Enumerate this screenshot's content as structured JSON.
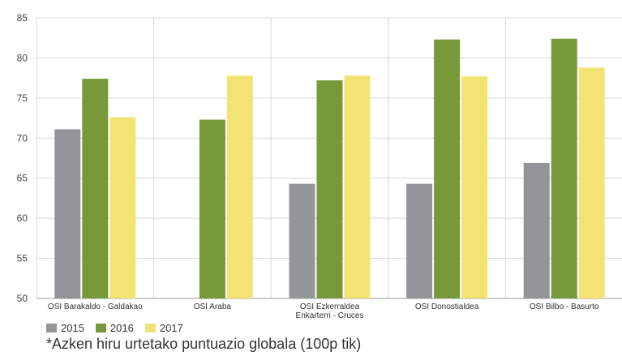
{
  "chart_data": {
    "type": "bar",
    "categories": [
      [
        "OSI Barakaldo - Galdakao"
      ],
      [
        "OSI Araba"
      ],
      [
        "OSI Ezkerraldea",
        "Enkarterri - Cruces"
      ],
      [
        "OSI Donostialdea"
      ],
      [
        "OSI Bilbo - Basurto"
      ]
    ],
    "series": [
      {
        "name": "2015",
        "color": "#939598",
        "values": [
          71.1,
          null,
          64.3,
          64.3,
          66.9
        ]
      },
      {
        "name": "2016",
        "color": "#77993a",
        "values": [
          77.4,
          72.3,
          77.2,
          82.3,
          82.4
        ]
      },
      {
        "name": "2017",
        "color": "#f2e474",
        "values": [
          72.6,
          77.8,
          77.8,
          77.7,
          78.8
        ]
      }
    ],
    "ylim": [
      50,
      85
    ],
    "yticks": [
      50,
      55,
      60,
      65,
      70,
      75,
      80,
      85
    ],
    "grid": "vertical separators",
    "legend_position": "bottom-left"
  },
  "legend": {
    "items": [
      {
        "label": "2015",
        "color": "#939598"
      },
      {
        "label": "2016",
        "color": "#77993a"
      },
      {
        "label": "2017",
        "color": "#f2e474"
      }
    ]
  },
  "footnote": "*Azken hiru urtetako puntuazio globala (100p tik)"
}
